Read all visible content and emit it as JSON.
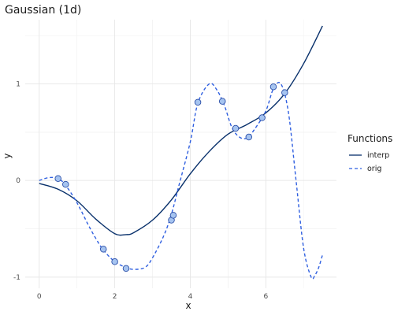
{
  "chart_data": {
    "type": "line",
    "title": "Gaussian (1d)",
    "xlabel": "x",
    "ylabel": "y",
    "xlim": [
      -0.37,
      7.87
    ],
    "ylim": [
      -1.115,
      1.665
    ],
    "x_ticks": [
      0,
      2,
      4,
      6
    ],
    "y_ticks": [
      -1,
      0,
      1
    ],
    "grid": true,
    "legend": {
      "title": "Functions",
      "position": "right",
      "entries": [
        {
          "label": "interp",
          "style": "solid",
          "color": "#08306b"
        },
        {
          "label": "orig",
          "style": "dashed",
          "color": "#2f5fe0"
        }
      ]
    },
    "series": [
      {
        "name": "interp",
        "style": "solid",
        "color": "#08306b",
        "x": [
          0,
          0.5,
          1.0,
          1.5,
          2.0,
          2.3,
          2.5,
          3.0,
          3.5,
          4.0,
          4.5,
          5.0,
          5.5,
          6.0,
          6.5,
          7.0,
          7.5
        ],
        "y": [
          -0.03,
          -0.09,
          -0.21,
          -0.4,
          -0.55,
          -0.56,
          -0.54,
          -0.41,
          -0.2,
          0.07,
          0.3,
          0.48,
          0.58,
          0.7,
          0.9,
          1.21,
          1.6
        ]
      },
      {
        "name": "orig",
        "style": "dashed",
        "color": "#2f5fe0",
        "x": [
          0,
          0.25,
          0.5,
          0.7,
          1.0,
          1.3,
          1.5,
          1.7,
          2.0,
          2.3,
          2.5,
          2.8,
          3.0,
          3.3,
          3.5,
          3.7,
          4.0,
          4.2,
          4.5,
          4.7,
          4.9,
          5.1,
          5.3,
          5.5,
          5.7,
          6.0,
          6.2,
          6.4,
          6.6,
          6.8,
          7.0,
          7.2,
          7.3,
          7.4,
          7.5
        ],
        "y": [
          0.0,
          0.03,
          0.02,
          -0.05,
          -0.23,
          -0.46,
          -0.6,
          -0.72,
          -0.84,
          -0.9,
          -0.92,
          -0.9,
          -0.8,
          -0.57,
          -0.35,
          -0.05,
          0.4,
          0.8,
          1.0,
          0.94,
          0.78,
          0.55,
          0.45,
          0.44,
          0.53,
          0.72,
          0.95,
          1.0,
          0.7,
          0.0,
          -0.7,
          -1.0,
          -0.98,
          -0.9,
          -0.77
        ]
      }
    ],
    "points": {
      "x": [
        0.5,
        0.7,
        1.7,
        2.0,
        2.3,
        3.5,
        3.55,
        4.2,
        4.85,
        5.2,
        5.55,
        5.9,
        6.2,
        6.5
      ],
      "y": [
        0.02,
        -0.04,
        -0.71,
        -0.84,
        -0.91,
        -0.41,
        -0.36,
        0.81,
        0.82,
        0.54,
        0.45,
        0.65,
        0.97,
        0.91
      ],
      "fill": "#a6c4f0",
      "stroke": "#2b4fa8"
    }
  }
}
